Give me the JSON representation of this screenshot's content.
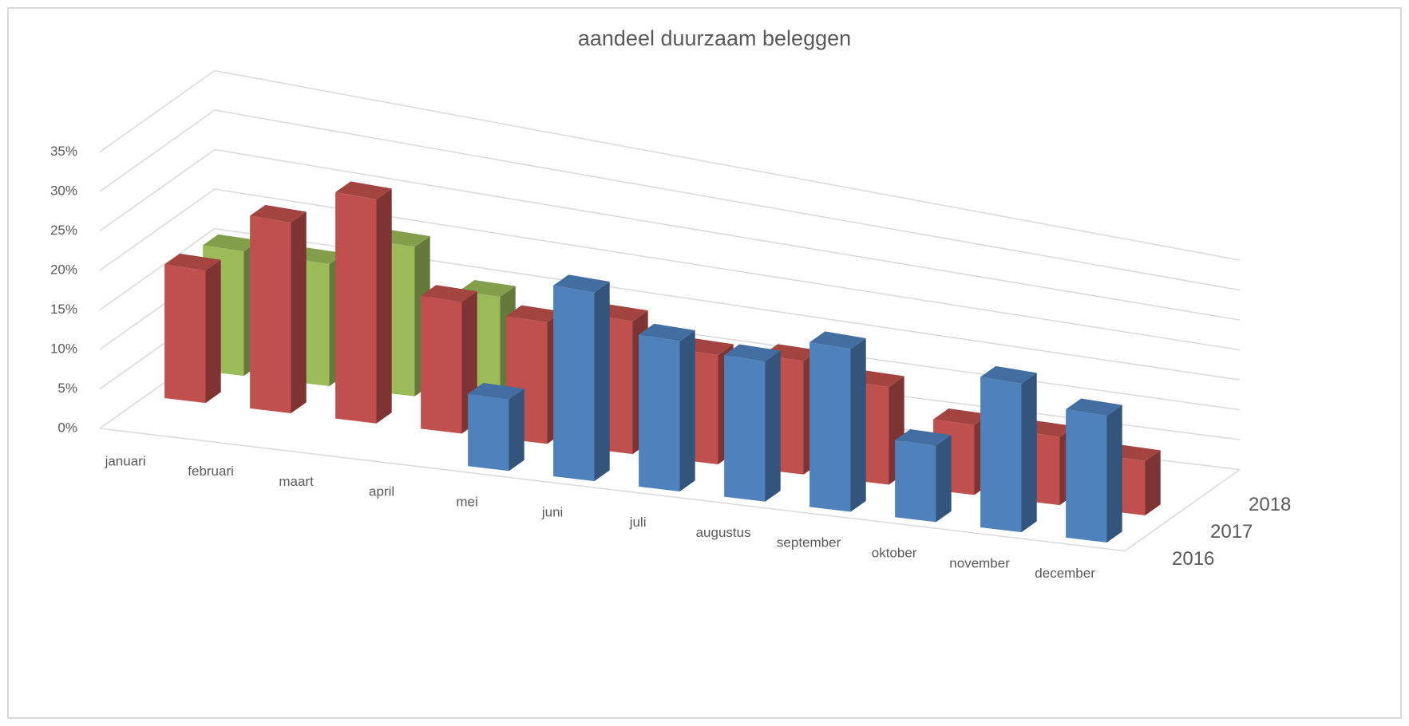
{
  "chart_data": {
    "type": "bar3d",
    "title": "aandeel duurzaam beleggen",
    "categories": [
      "januari",
      "februari",
      "maart",
      "april",
      "mei",
      "juni",
      "juli",
      "augustus",
      "september",
      "oktober",
      "november",
      "december"
    ],
    "series": [
      {
        "name": "2016",
        "color": "#4f81bd",
        "values": [
          null,
          null,
          null,
          null,
          10,
          27,
          22,
          21,
          25,
          12,
          24,
          21
        ]
      },
      {
        "name": "2017",
        "color": "#c0504d",
        "values": [
          17,
          25,
          30,
          18,
          17,
          19,
          16,
          17,
          15,
          11,
          11,
          9
        ]
      },
      {
        "name": "2018",
        "color": "#9bbb59",
        "values": [
          16,
          16,
          20,
          15,
          null,
          null,
          null,
          null,
          null,
          null,
          null,
          null
        ]
      }
    ],
    "ylim": [
      0,
      35
    ],
    "yticks": [
      {
        "value": 0,
        "label": "0%"
      },
      {
        "value": 5,
        "label": "5%"
      },
      {
        "value": 10,
        "label": "10%"
      },
      {
        "value": 15,
        "label": "15%"
      },
      {
        "value": 20,
        "label": "20%"
      },
      {
        "value": 25,
        "label": "25%"
      },
      {
        "value": 30,
        "label": "30%"
      },
      {
        "value": 35,
        "label": "35%"
      }
    ],
    "grid": true
  }
}
